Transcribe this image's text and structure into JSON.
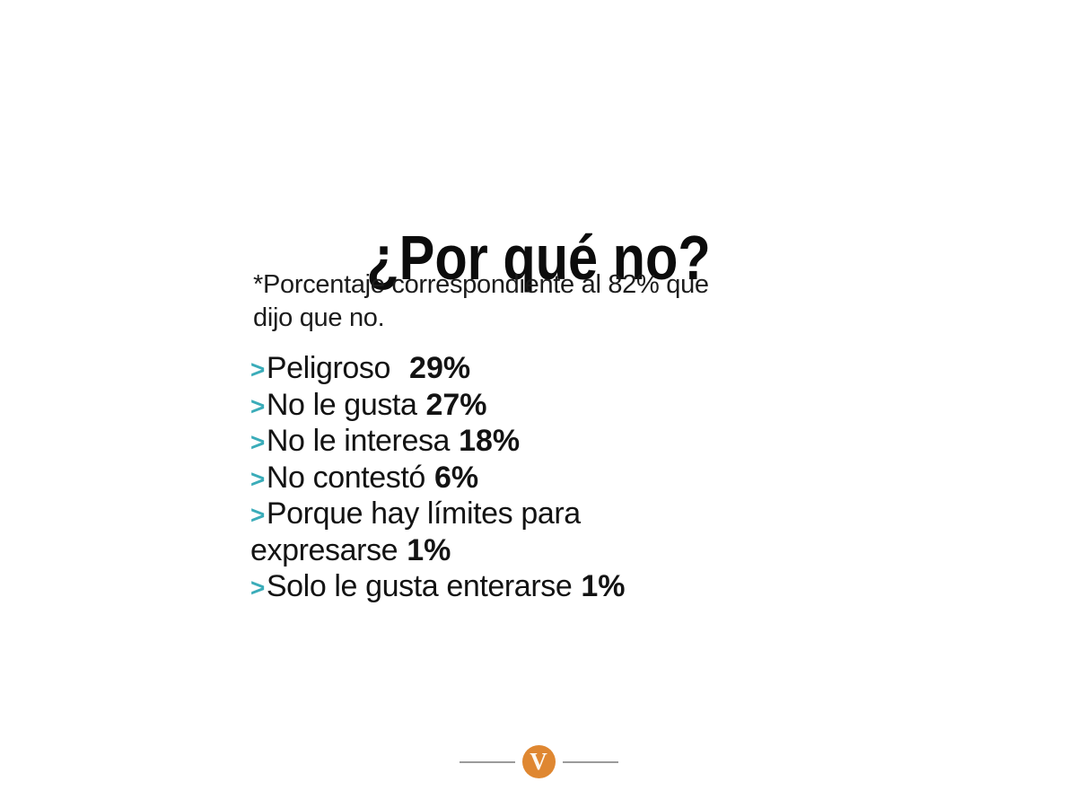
{
  "slide": {
    "title": "¿Por qué no?",
    "note": {
      "lines": [
        "*Porcentaje correspondiente al 82% que",
        "dijo que no."
      ]
    },
    "items": [
      {
        "bullet": ">",
        "text": "Peligroso",
        "value": "29%"
      },
      {
        "bullet": ">",
        "text": "No le gusta",
        "value": "27%"
      },
      {
        "bullet": ">",
        "text": "No le interesa",
        "value": "18%"
      },
      {
        "bullet": ">",
        "text": "No contestó",
        "value": "6%"
      },
      {
        "bullet": ">",
        "text": "Porque hay límites para",
        "value": ""
      },
      {
        "bullet": "",
        "text": "expresarse",
        "value": "1%"
      },
      {
        "bullet": ">",
        "text": "Solo le gusta enterarse",
        "value": "1%"
      }
    ],
    "footer": {
      "logo_letter": "V"
    },
    "colors": {
      "accent_teal": "#3AACB9",
      "logo_orange": "#DF8731",
      "text": "#131313",
      "divider_gray": "#9B9B9B"
    }
  }
}
